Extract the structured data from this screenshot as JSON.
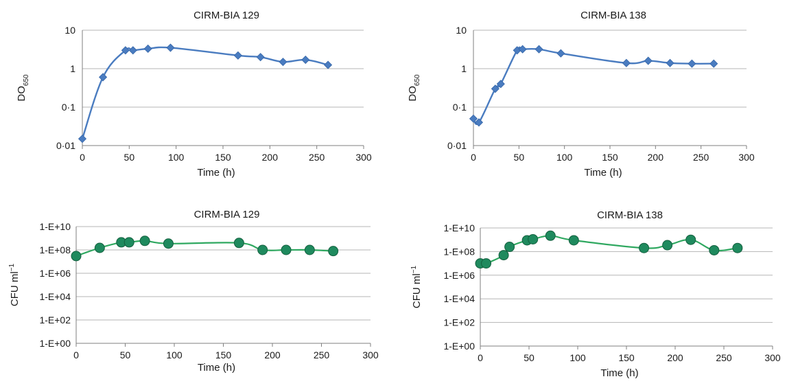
{
  "colors": {
    "od": "#4a7cc0",
    "cfu": "#1f8a5e",
    "cfu_line": "#2fa860"
  },
  "chart_data": [
    {
      "type": "line",
      "title": "CIRM-BIA 129",
      "xlabel": "Time (h)",
      "ylabel": "DO",
      "ylabel_sub": "650",
      "yscale": "log",
      "xlim": [
        0,
        300
      ],
      "ylim": [
        0.01,
        10
      ],
      "xticks": [
        "0",
        "50",
        "100",
        "150",
        "200",
        "250",
        "300"
      ],
      "yticks": [
        "0·01",
        "0·1",
        "1",
        "10"
      ],
      "marker": "diamond",
      "series": [
        {
          "x": [
            0,
            22,
            46,
            54,
            70,
            94,
            166,
            190,
            214,
            238,
            262
          ],
          "y": [
            0.015,
            0.6,
            3.0,
            3.0,
            3.3,
            3.5,
            2.2,
            2.0,
            1.5,
            1.7,
            1.25
          ]
        }
      ]
    },
    {
      "type": "line",
      "title": "CIRM-BIA 138",
      "xlabel": "Time (h)",
      "ylabel": "DO",
      "ylabel_sub": "650",
      "yscale": "log",
      "xlim": [
        0,
        300
      ],
      "ylim": [
        0.01,
        10
      ],
      "xticks": [
        "0",
        "50",
        "100",
        "150",
        "200",
        "250",
        "300"
      ],
      "yticks": [
        "0·01",
        "0·1",
        "1",
        "10"
      ],
      "marker": "diamond",
      "series": [
        {
          "x": [
            0,
            6,
            24,
            30,
            48,
            54,
            72,
            96,
            168,
            192,
            216,
            240,
            264
          ],
          "y": [
            0.05,
            0.04,
            0.3,
            0.4,
            3.0,
            3.2,
            3.2,
            2.5,
            1.4,
            1.6,
            1.4,
            1.35,
            1.35
          ]
        }
      ]
    },
    {
      "type": "line",
      "title": "CIRM-BIA 129",
      "xlabel": "Time (h)",
      "ylabel": "CFU ml",
      "ylabel_sup": "−1",
      "yscale": "log",
      "xlim": [
        0,
        300
      ],
      "ylim": [
        1,
        10000000000
      ],
      "xticks": [
        "0",
        "50",
        "100",
        "150",
        "200",
        "250",
        "300"
      ],
      "yticks": [
        "1-E+00",
        "1-E+02",
        "1-E+04",
        "1-E+06",
        "1-E+08",
        "1-E+10"
      ],
      "marker": "circle",
      "series": [
        {
          "x": [
            0,
            24,
            46,
            54,
            70,
            94,
            166,
            190,
            214,
            238,
            262
          ],
          "y": [
            30000000,
            150000000,
            450000000,
            450000000,
            600000000,
            350000000,
            400000000,
            100000000,
            100000000,
            100000000,
            80000000
          ]
        }
      ]
    },
    {
      "type": "line",
      "title": "CIRM-BIA 138",
      "xlabel": "Time (h)",
      "ylabel": "CFU ml",
      "ylabel_sup": "−1",
      "yscale": "log",
      "xlim": [
        0,
        300
      ],
      "ylim": [
        1,
        10000000000
      ],
      "xticks": [
        "0",
        "50",
        "100",
        "150",
        "200",
        "250",
        "300"
      ],
      "yticks": [
        "1-E+00",
        "1-E+02",
        "1-E+04",
        "1-E+06",
        "1-E+08",
        "1-E+10"
      ],
      "marker": "circle",
      "series": [
        {
          "x": [
            0,
            6,
            24,
            30,
            48,
            54,
            72,
            96,
            168,
            192,
            216,
            240,
            264
          ],
          "y": [
            10000000,
            10000000,
            50000000,
            250000000,
            900000000,
            1100000000,
            2200000000,
            900000000,
            200000000,
            350000000,
            1000000000,
            130000000,
            200000000
          ]
        }
      ]
    }
  ]
}
